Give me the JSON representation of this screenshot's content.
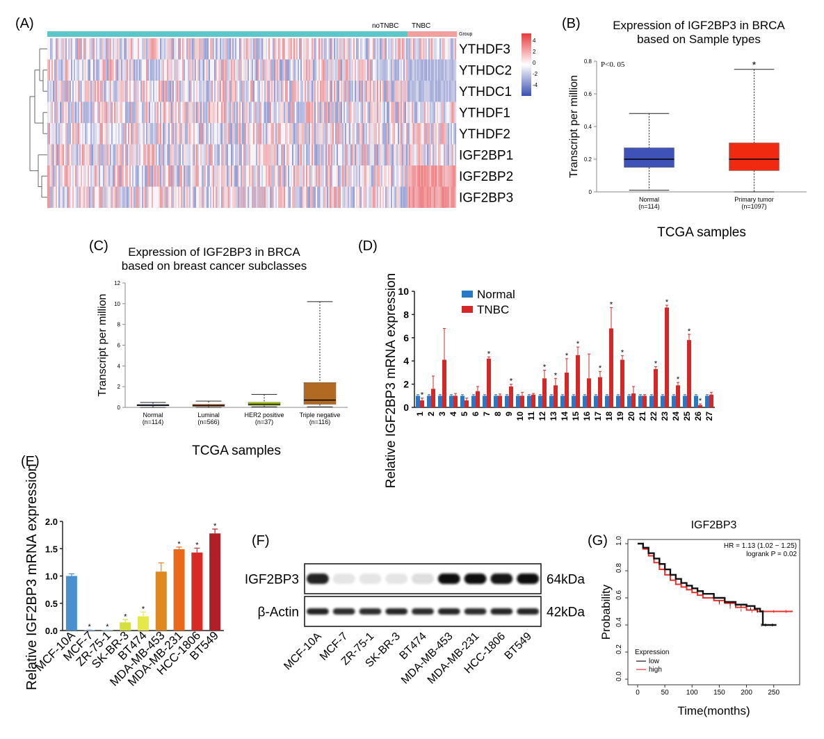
{
  "panel_labels": {
    "A": "(A)",
    "B": "(B)",
    "C": "(C)",
    "D": "(D)",
    "E": "(E)",
    "F": "(F)",
    "G": "(G)"
  },
  "chart_data": [
    {
      "panel": "A",
      "type": "heatmap",
      "rows": [
        "YTHDF3",
        "YTHDC2",
        "YTHDC1",
        "YTHDF1",
        "YTHDF2",
        "IGF2BP1",
        "IGF2BP2",
        "IGF2BP3"
      ],
      "groups": [
        {
          "name": "noTNBC",
          "color": "#5cc6c8"
        },
        {
          "name": "TNBC",
          "color": "#f0a09e"
        }
      ],
      "group_label": "Group",
      "colorscale": {
        "ticks": [
          "4",
          "2",
          "0",
          "-2",
          "-4"
        ],
        "high": "#e8383a",
        "mid": "#ffffff",
        "low": "#3a4fb0"
      }
    },
    {
      "panel": "B",
      "type": "box",
      "title_line1": "Expression of IGF2BP3 in BRCA",
      "title_line2": "based on Sample types",
      "ylabel": "Transcript per million",
      "xlabel": "TCGA samples",
      "ylim": [
        0,
        0.8
      ],
      "yticks": [
        "0",
        "0.2",
        "0.4",
        "0.6",
        "0.8"
      ],
      "annotation": "P<0. 05",
      "groups": [
        {
          "name": "Normal",
          "n": "(n=114)",
          "min": 0.01,
          "q1": 0.15,
          "median": 0.2,
          "q3": 0.27,
          "max": 0.48,
          "color": "#3e52b8",
          "sig": ""
        },
        {
          "name": "Primary tumor",
          "n": "(n=1097)",
          "min": 0.0,
          "q1": 0.13,
          "median": 0.2,
          "q3": 0.3,
          "max": 0.75,
          "color": "#f02a10",
          "sig": "*"
        }
      ]
    },
    {
      "panel": "C",
      "type": "box",
      "title_line1": "Expression of IGF2BP3 in BRCA",
      "title_line2": "based on breast cancer subclasses",
      "ylabel": "Transcript per million",
      "xlabel": "TCGA samples",
      "ylim": [
        0,
        12
      ],
      "yticks": [
        "0",
        "2",
        "4",
        "6",
        "8",
        "10",
        "12"
      ],
      "groups": [
        {
          "name": "Normal",
          "n": "(n=114)",
          "min": 0.0,
          "q1": 0.15,
          "median": 0.2,
          "q3": 0.28,
          "max": 0.48,
          "color": "#3e52b8"
        },
        {
          "name": "Luminal",
          "n": "(n=566)",
          "min": 0.0,
          "q1": 0.1,
          "median": 0.18,
          "q3": 0.3,
          "max": 0.6,
          "color": "#f06a20"
        },
        {
          "name": "HER2 positive",
          "n": "(n=37)",
          "min": 0.05,
          "q1": 0.18,
          "median": 0.3,
          "q3": 0.5,
          "max": 1.25,
          "color": "#b8d418"
        },
        {
          "name": "Triple negative",
          "n": "(n=116)",
          "min": 0.05,
          "q1": 0.3,
          "median": 0.7,
          "q3": 2.4,
          "max": 10.2,
          "color": "#b06a22"
        }
      ]
    },
    {
      "panel": "D",
      "type": "bar",
      "ylabel": "Relative IGF2BP3 mRNA expression",
      "ylim": [
        0,
        10
      ],
      "yticks": [
        "0",
        "2",
        "4",
        "6",
        "8",
        "10"
      ],
      "categories": [
        "1",
        "2",
        "3",
        "4",
        "5",
        "6",
        "7",
        "8",
        "9",
        "10",
        "11",
        "12",
        "13",
        "14",
        "15",
        "16",
        "17",
        "18",
        "19",
        "20",
        "21",
        "22",
        "23",
        "24",
        "25",
        "26",
        "27"
      ],
      "series": [
        {
          "name": "Normal",
          "color": "#2878c8",
          "values": [
            1,
            1,
            1,
            1,
            1,
            1,
            1,
            1,
            1,
            1,
            1,
            1,
            1,
            1,
            1,
            1,
            1,
            1,
            1,
            1,
            1,
            1,
            1,
            1,
            1,
            1,
            1
          ],
          "errors": [
            0.1,
            0.1,
            0.1,
            0.1,
            0.1,
            0.1,
            0.1,
            0.1,
            0.1,
            0.1,
            0.1,
            0.1,
            0.1,
            0.1,
            0.1,
            0.1,
            0.1,
            0.1,
            0.1,
            0.1,
            0.1,
            0.1,
            0.1,
            0.1,
            0.1,
            0.1,
            0.1
          ]
        },
        {
          "name": "TNBC",
          "color": "#d42828",
          "values": [
            0.6,
            1.6,
            4.1,
            1.0,
            0.6,
            1.4,
            4.2,
            1.0,
            1.8,
            1.0,
            1.1,
            2.5,
            1.9,
            3.0,
            4.5,
            2.5,
            2.6,
            6.8,
            4.1,
            1.2,
            1.0,
            3.3,
            8.6,
            1.9,
            5.8,
            0.2,
            1.1
          ],
          "errors": [
            0.2,
            1.1,
            2.7,
            0.2,
            0.2,
            0.4,
            0.15,
            0.15,
            0.2,
            0.3,
            0.1,
            0.7,
            0.6,
            1.2,
            0.7,
            2.1,
            0.5,
            1.8,
            0.35,
            0.6,
            0.1,
            0.2,
            0.2,
            0.25,
            0.5,
            0.1,
            0.2
          ]
        }
      ],
      "significant": [
        1,
        7,
        9,
        12,
        13,
        14,
        15,
        17,
        18,
        19,
        22,
        23,
        24,
        25,
        26
      ]
    },
    {
      "panel": "E",
      "type": "bar",
      "ylabel": "Relative IGF2BP3 mRNA expression",
      "ylim": [
        0,
        2.0
      ],
      "yticks": [
        "0.0",
        "0.5",
        "1.0",
        "1.5",
        "2.0"
      ],
      "categories": [
        "MCF-10A",
        "MCF-7",
        "ZR-75-1",
        "SK-BR-3",
        "BT474",
        "MDA-MB-453",
        "MDA-MB-231",
        "HCC-1806",
        "BT549"
      ],
      "values": [
        1.0,
        0.01,
        0.01,
        0.15,
        0.26,
        1.08,
        1.49,
        1.43,
        1.78
      ],
      "errors": [
        0.04,
        0.005,
        0.005,
        0.05,
        0.08,
        0.16,
        0.04,
        0.08,
        0.08
      ],
      "colors": [
        "#4a90d0",
        "#a0c8ee",
        "#b8ddf5",
        "#d4e040",
        "#e4e848",
        "#e08820",
        "#e86a18",
        "#d82a24",
        "#b01e28"
      ],
      "significant": [
        1,
        2,
        3,
        4,
        6,
        7,
        8
      ]
    },
    {
      "panel": "F",
      "type": "western-blot",
      "bands": [
        {
          "label": "IGF2BP3",
          "size": "64kDa",
          "intensities": [
            0.9,
            0.05,
            0.05,
            0.05,
            0.08,
            1,
            1,
            0.95,
            1
          ]
        },
        {
          "label": "β-Actin",
          "size": "42kDa",
          "intensities": [
            0.9,
            0.85,
            0.85,
            0.88,
            0.85,
            0.88,
            0.85,
            0.88,
            0.88
          ]
        }
      ],
      "lanes": [
        "MCF-10A",
        "MCF-7",
        "ZR-75-1",
        "SK-BR-3",
        "BT474",
        "MDA-MB-453",
        "MDA-MB-231",
        "HCC-1806",
        "BT549"
      ]
    },
    {
      "panel": "G",
      "type": "line",
      "title": "IGF2BP3",
      "xlabel": "Time(months)",
      "ylabel": "Probability",
      "xlim": [
        0,
        290
      ],
      "ylim": [
        0,
        1.0
      ],
      "xticks": [
        "0",
        "50",
        "100",
        "150",
        "200",
        "250"
      ],
      "yticks": [
        "0.0",
        "0.2",
        "0.4",
        "0.6",
        "0.8",
        "1.0"
      ],
      "hr_text": "HR = 1.13 (1.02 − 1.25)",
      "logrank_text": "logrank P = 0.02",
      "legend_title": "Expression",
      "series": [
        {
          "name": "low",
          "color": "#111111",
          "x": [
            0,
            10,
            20,
            30,
            40,
            50,
            60,
            70,
            80,
            90,
            100,
            110,
            120,
            140,
            160,
            180,
            200,
            215,
            225,
            230,
            240,
            255
          ],
          "y": [
            1.0,
            0.97,
            0.93,
            0.89,
            0.85,
            0.81,
            0.77,
            0.74,
            0.71,
            0.69,
            0.67,
            0.65,
            0.63,
            0.6,
            0.57,
            0.55,
            0.54,
            0.52,
            0.5,
            0.4,
            0.4,
            0.4
          ]
        },
        {
          "name": "high",
          "color": "#e8302a",
          "x": [
            0,
            10,
            20,
            30,
            40,
            50,
            60,
            70,
            80,
            90,
            100,
            110,
            120,
            140,
            160,
            180,
            200,
            220,
            240,
            260,
            285
          ],
          "y": [
            1.0,
            0.96,
            0.91,
            0.86,
            0.81,
            0.77,
            0.73,
            0.7,
            0.68,
            0.66,
            0.64,
            0.62,
            0.6,
            0.58,
            0.56,
            0.53,
            0.51,
            0.5,
            0.5,
            0.5,
            0.5
          ]
        }
      ]
    }
  ]
}
